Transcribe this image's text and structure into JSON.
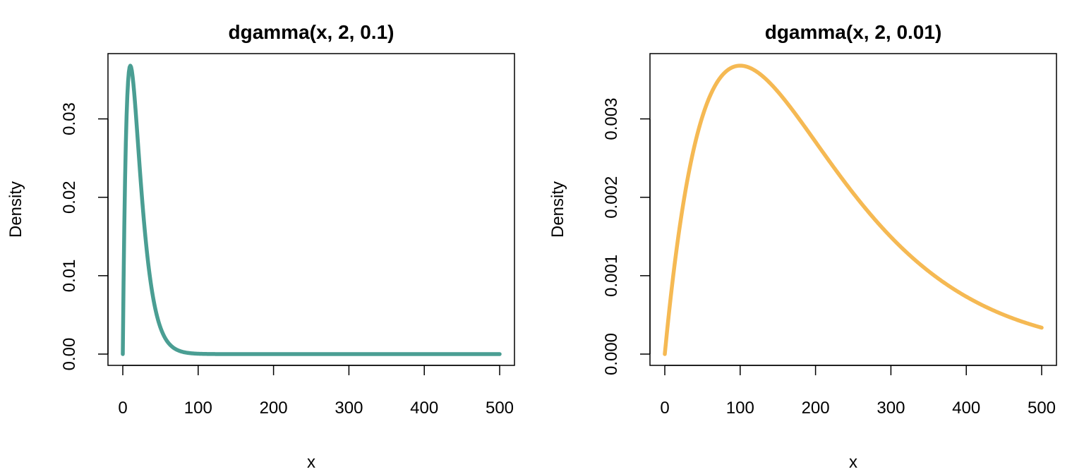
{
  "chart_data": [
    {
      "type": "line",
      "title": "dgamma(x, 2, 0.1)",
      "xlabel": "x",
      "ylabel": "Density",
      "shape": 2,
      "rate": 0.1,
      "xlim": [
        0,
        500
      ],
      "ylim": [
        0,
        0.0368
      ],
      "x_ticks": [
        "0",
        "100",
        "200",
        "300",
        "400",
        "500"
      ],
      "y_ticks": [
        "0.00",
        "0.01",
        "0.02",
        "0.03"
      ],
      "x": [
        0,
        5,
        10,
        15,
        20,
        25,
        30,
        40,
        50,
        60,
        70,
        80,
        90,
        100,
        125,
        150,
        200,
        300,
        400,
        500
      ],
      "y": [
        0,
        0.0303,
        0.0368,
        0.0335,
        0.0271,
        0.0205,
        0.0149,
        0.0073,
        0.0034,
        0.0015,
        0.0006,
        0.0003,
        0.0001,
        5e-05,
        0,
        0,
        0,
        0,
        0,
        0
      ],
      "grid": false,
      "color": "#4A9E93"
    },
    {
      "type": "line",
      "title": "dgamma(x, 2, 0.01)",
      "xlabel": "x",
      "ylabel": "Density",
      "shape": 2,
      "rate": 0.01,
      "xlim": [
        0,
        500
      ],
      "ylim": [
        0,
        0.00368
      ],
      "x_ticks": [
        "0",
        "100",
        "200",
        "300",
        "400",
        "500"
      ],
      "y_ticks": [
        "0.000",
        "0.001",
        "0.002",
        "0.003"
      ],
      "x": [
        0,
        25,
        50,
        75,
        100,
        125,
        150,
        200,
        250,
        300,
        350,
        400,
        450,
        500
      ],
      "y": [
        0,
        0.00195,
        0.00303,
        0.00354,
        0.00368,
        0.00358,
        0.00335,
        0.00271,
        0.00205,
        0.00149,
        0.00106,
        0.00073,
        0.0005,
        0.00034
      ],
      "grid": false,
      "color": "#F5B953"
    }
  ]
}
